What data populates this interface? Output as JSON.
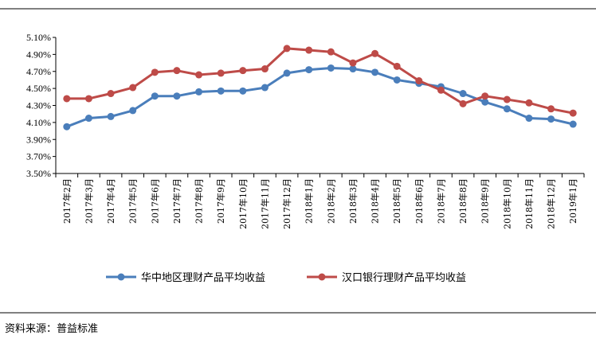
{
  "chart_data": {
    "type": "line",
    "categories": [
      "2017年2月",
      "2017年3月",
      "2017年4月",
      "2017年5月",
      "2017年6月",
      "2017年7月",
      "2017年8月",
      "2017年9月",
      "2017年10月",
      "2017年11月",
      "2017年12月",
      "2018年1月",
      "2018年2月",
      "2018年3月",
      "2018年4月",
      "2018年5月",
      "2018年6月",
      "2018年7月",
      "2018年8月",
      "2018年9月",
      "2018年10月",
      "2018年11月",
      "2018年12月",
      "2019年1月"
    ],
    "series": [
      {
        "name": "华中地区理财产品平均收益",
        "color": "#4a7ebb",
        "values": [
          4.05,
          4.15,
          4.17,
          4.24,
          4.41,
          4.41,
          4.46,
          4.47,
          4.47,
          4.51,
          4.68,
          4.72,
          4.74,
          4.73,
          4.69,
          4.6,
          4.56,
          4.52,
          4.44,
          4.34,
          4.26,
          4.15,
          4.14,
          4.08
        ]
      },
      {
        "name": "汉口银行理财产品平均收益",
        "color": "#be4b48",
        "values": [
          4.38,
          4.38,
          4.44,
          4.51,
          4.69,
          4.71,
          4.66,
          4.68,
          4.71,
          4.73,
          4.97,
          4.95,
          4.93,
          4.8,
          4.91,
          4.76,
          4.59,
          4.48,
          4.32,
          4.41,
          4.37,
          4.33,
          4.26,
          4.21
        ]
      }
    ],
    "yticks": [
      "5.10%",
      "4.90%",
      "4.70%",
      "4.50%",
      "4.30%",
      "4.10%",
      "3.90%",
      "3.70%",
      "3.50%"
    ],
    "ylim": [
      3.5,
      5.1
    ],
    "title": "",
    "xlabel": "",
    "ylabel": "",
    "legend_position": "bottom"
  },
  "source_text": "资料来源：普益标准"
}
